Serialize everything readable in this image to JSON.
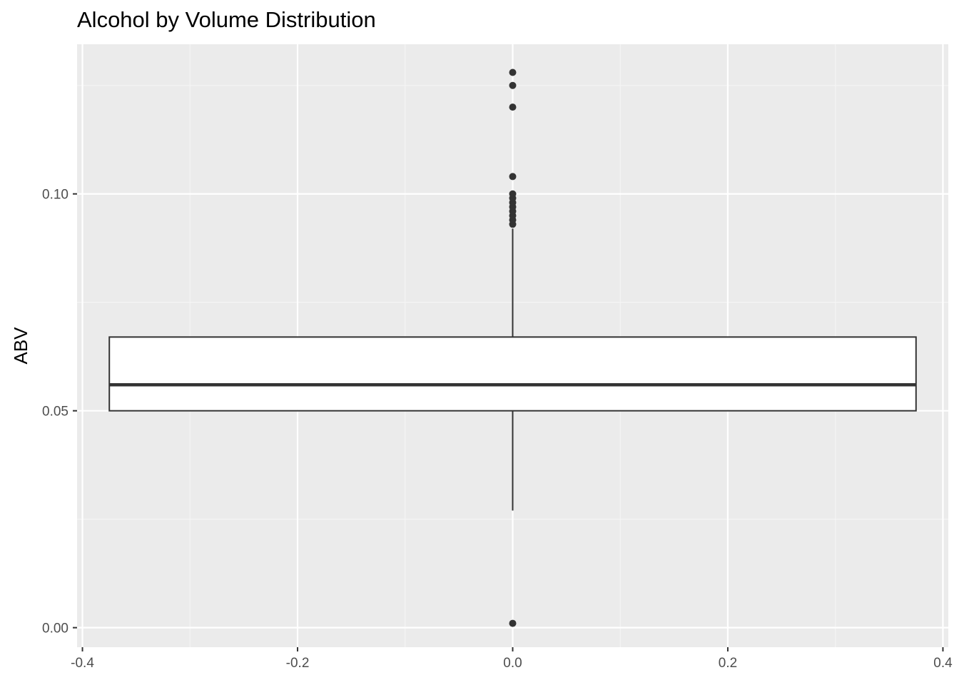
{
  "chart_data": {
    "type": "boxplot",
    "title": "Alcohol by Volume Distribution",
    "xlabel": "",
    "ylabel": "ABV",
    "xlim": [
      -0.405,
      0.405
    ],
    "ylim": [
      -0.0045,
      0.1345
    ],
    "x_ticks": [
      -0.4,
      -0.2,
      0.0,
      0.2,
      0.4
    ],
    "x_tick_labels": [
      "-0.4",
      "-0.2",
      "0.0",
      "0.2",
      "0.4"
    ],
    "y_ticks": [
      0.0,
      0.05,
      0.1
    ],
    "y_tick_labels": [
      "0.00",
      "0.05",
      "0.10"
    ],
    "grid": true,
    "box": {
      "x_center": 0.0,
      "x_left": -0.375,
      "x_right": 0.375,
      "q1": 0.05,
      "median": 0.056,
      "q3": 0.067,
      "whisker_low": 0.027,
      "whisker_high": 0.092
    },
    "outliers": [
      0.001,
      0.093,
      0.094,
      0.095,
      0.096,
      0.097,
      0.098,
      0.099,
      0.1,
      0.104,
      0.12,
      0.125,
      0.128
    ],
    "colors": {
      "panel_background": "#ebebeb",
      "grid_major": "#ffffff",
      "grid_minor": "#f5f5f5",
      "box_fill": "#ffffff",
      "box_stroke": "#333333",
      "outlier": "#333333",
      "tick_label": "#4d4d4d",
      "tick": "#333333"
    }
  }
}
